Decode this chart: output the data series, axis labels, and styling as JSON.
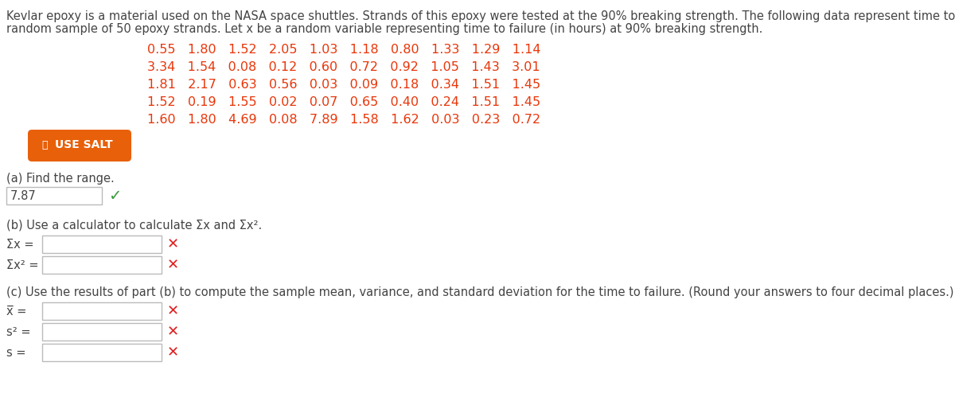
{
  "bg_color": "#ffffff",
  "intro_line1": "Kevlar epoxy is a material used on the NASA space shuttles. Strands of this epoxy were tested at the 90% breaking strength. The following data represent time to failure (in hours) for a",
  "intro_line2": "random sample of 50 epoxy strands. Let x be a random variable representing time to failure (in hours) at 90% breaking strength.",
  "data_rows": [
    "0.55   1.80   1.52   2.05   1.03   1.18   0.80   1.33   1.29   1.14",
    "3.34   1.54   0.08   0.12   0.60   0.72   0.92   1.05   1.43   3.01",
    "1.81   2.17   0.63   0.56   0.03   0.09   0.18   0.34   1.51   1.45",
    "1.52   0.19   1.55   0.02   0.07   0.65   0.40   0.24   1.51   1.45",
    "1.60   1.80   4.69   0.08   7.89   1.58   1.62   0.03   0.23   0.72"
  ],
  "data_color": "#e8360a",
  "button_bg": "#e8600a",
  "button_fg": "#ffffff",
  "button_text": "USE SALT",
  "part_a_label": "(a) Find the range.",
  "part_a_answer": "7.87",
  "part_b_label": "(b) Use a calculator to calculate Σx and Σx².",
  "part_b_r1": "Σx =",
  "part_b_r2": "Σx² =",
  "part_c_label": "(c) Use the results of part (b) to compute the sample mean, variance, and standard deviation for the time to failure. (Round your answers to four decimal places.)",
  "part_c_r1": "x̅ =",
  "part_c_r2": "s² =",
  "part_c_r3": "s =",
  "text_color": "#444444",
  "box_edge": "#bbbbbb",
  "check_color": "#3a9a3a",
  "xmark_color": "#dd2222",
  "intro_fs": 10.5,
  "data_fs": 11.5,
  "body_fs": 10.5,
  "label_fs": 10.5
}
